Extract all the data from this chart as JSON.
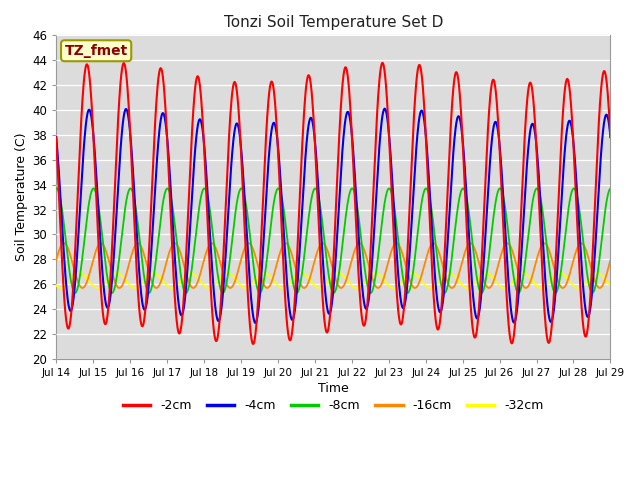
{
  "title": "Tonzi Soil Temperature Set D",
  "xlabel": "Time",
  "ylabel": "Soil Temperature (C)",
  "ylim": [
    20,
    46
  ],
  "annotation_label": "TZ_fmet",
  "annotation_color": "#8B0000",
  "annotation_bg": "#FFFFCC",
  "annotation_edge": "#999900",
  "background_color": "#DCDCDC",
  "fig_background": "#FFFFFF",
  "grid_color": "#FFFFFF",
  "series": {
    "-2cm": {
      "color": "#FF0000",
      "amplitude": 10.5,
      "mean": 32.5,
      "phase_shift": 0.0
    },
    "-4cm": {
      "color": "#0000EE",
      "amplitude": 8.0,
      "mean": 31.5,
      "phase_shift": 0.06
    },
    "-8cm": {
      "color": "#00CC00",
      "amplitude": 4.2,
      "mean": 29.5,
      "phase_shift": 0.18
    },
    "-16cm": {
      "color": "#FF8800",
      "amplitude": 1.8,
      "mean": 27.5,
      "phase_shift": 0.38
    },
    "-32cm": {
      "color": "#FFFF00",
      "amplitude": 0.6,
      "mean": 26.3,
      "phase_shift": 0.8
    }
  },
  "legend_entries": [
    "-2cm",
    "-4cm",
    "-8cm",
    "-16cm",
    "-32cm"
  ],
  "legend_colors": [
    "#FF0000",
    "#0000EE",
    "#00CC00",
    "#FF8800",
    "#FFFF00"
  ],
  "xtick_days": [
    14,
    15,
    16,
    17,
    18,
    19,
    20,
    21,
    22,
    23,
    24,
    25,
    26,
    27,
    28,
    29
  ],
  "ytick_vals": [
    20,
    22,
    24,
    26,
    28,
    30,
    32,
    34,
    36,
    38,
    40,
    42,
    44,
    46
  ]
}
